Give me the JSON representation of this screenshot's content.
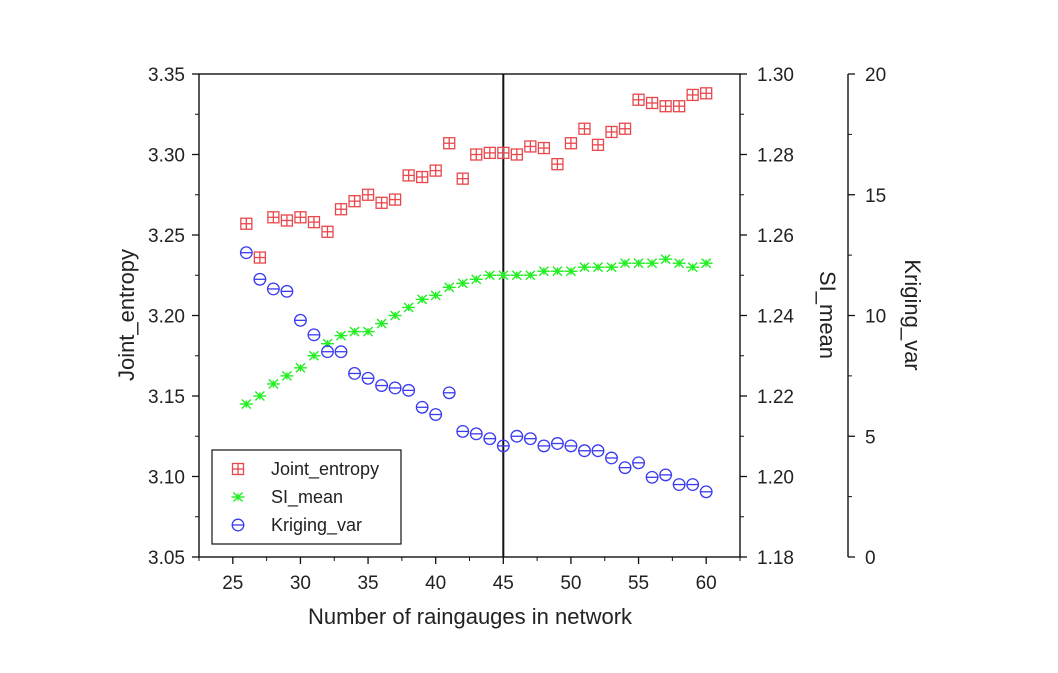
{
  "chart_data": {
    "type": "scatter",
    "xlabel": "Number of raingauges in network",
    "x_ticks": [
      "25",
      "30",
      "35",
      "40",
      "45",
      "50",
      "55",
      "60"
    ],
    "xlim": [
      22.5,
      62.5
    ],
    "vertical_marker_x": 45,
    "axes": [
      {
        "id": "left",
        "label": "Joint_entropy",
        "lim": [
          3.05,
          3.35
        ],
        "ticks": [
          "3.05",
          "3.10",
          "3.15",
          "3.20",
          "3.25",
          "3.30",
          "3.35"
        ]
      },
      {
        "id": "right1",
        "label": "SI_mean",
        "lim": [
          1.18,
          1.3
        ],
        "ticks": [
          "1.18",
          "1.20",
          "1.22",
          "1.24",
          "1.26",
          "1.28",
          "1.30"
        ]
      },
      {
        "id": "right2",
        "label": "Kriging_var",
        "lim": [
          0,
          20
        ],
        "ticks": [
          "0",
          "5",
          "10",
          "15",
          "20"
        ]
      }
    ],
    "x": [
      26,
      27,
      28,
      29,
      30,
      31,
      32,
      33,
      34,
      35,
      36,
      37,
      38,
      39,
      40,
      41,
      42,
      43,
      44,
      45,
      46,
      47,
      48,
      49,
      50,
      51,
      52,
      53,
      54,
      55,
      56,
      57,
      58,
      59,
      60
    ],
    "series": [
      {
        "name": "Joint_entropy",
        "axis": "left",
        "marker": "boxplus",
        "color": "#e8474c",
        "values": [
          3.257,
          3.236,
          3.261,
          3.259,
          3.261,
          3.258,
          3.252,
          3.266,
          3.271,
          3.275,
          3.27,
          3.272,
          3.287,
          3.286,
          3.29,
          3.307,
          3.285,
          3.3,
          3.301,
          3.301,
          3.3,
          3.305,
          3.304,
          3.294,
          3.307,
          3.316,
          3.306,
          3.314,
          3.316,
          3.334,
          3.332,
          3.33,
          3.33,
          3.337,
          3.338
        ]
      },
      {
        "name": "SI_mean",
        "axis": "right1",
        "marker": "asterisk",
        "color": "#22ee22",
        "values": [
          1.218,
          1.22,
          1.223,
          1.225,
          1.227,
          1.23,
          1.233,
          1.235,
          1.236,
          1.236,
          1.238,
          1.24,
          1.242,
          1.244,
          1.245,
          1.247,
          1.248,
          1.249,
          1.25,
          1.25,
          1.25,
          1.25,
          1.251,
          1.251,
          1.251,
          1.252,
          1.252,
          1.252,
          1.253,
          1.253,
          1.253,
          1.254,
          1.253,
          1.252,
          1.253
        ]
      },
      {
        "name": "Kriging_var",
        "axis": "right2",
        "marker": "circle-bar",
        "color": "#3a3af0",
        "values": [
          12.6,
          11.5,
          11.1,
          11.0,
          9.8,
          9.2,
          8.5,
          8.5,
          7.6,
          7.4,
          7.1,
          7.0,
          6.9,
          6.2,
          5.9,
          6.8,
          5.2,
          5.1,
          4.9,
          4.6,
          5.0,
          4.9,
          4.6,
          4.7,
          4.6,
          4.4,
          4.4,
          4.1,
          3.7,
          3.9,
          3.3,
          3.4,
          3.0,
          3.0,
          2.7
        ]
      }
    ],
    "legend_position": "bottom-left",
    "grid": false
  }
}
